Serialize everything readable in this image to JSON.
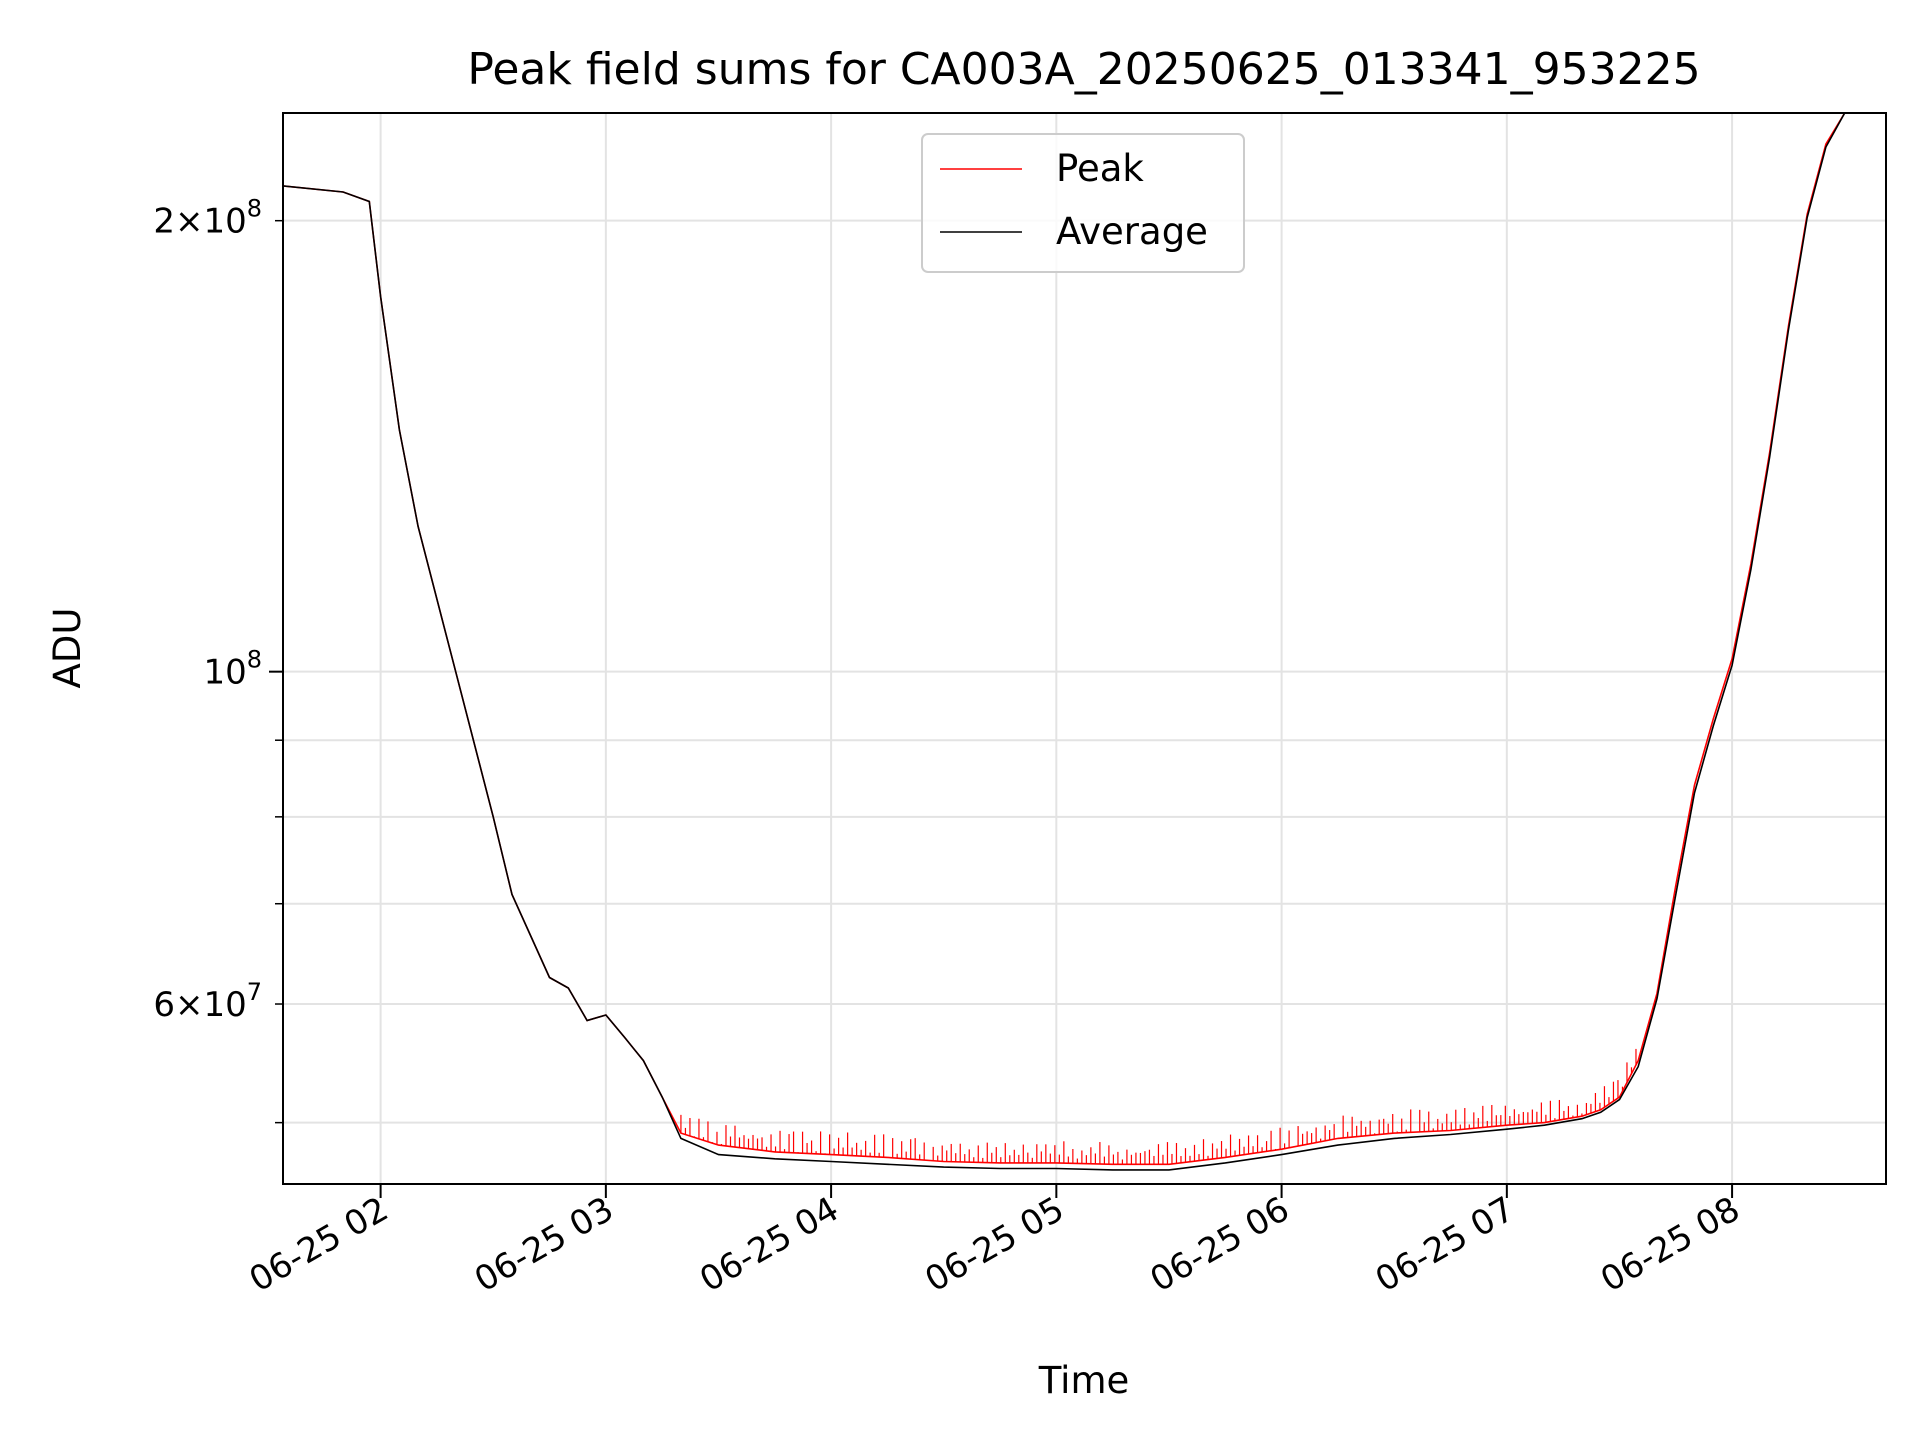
{
  "chart_data": {
    "type": "line",
    "title": "Peak field sums for CA003A_20250625_013341_953225",
    "xlabel": "Time",
    "ylabel": "ADU",
    "yscale": "log",
    "grid": true,
    "legend_position": "upper center",
    "xlim": [
      "06-25 01:34",
      "06-25 08:41"
    ],
    "ylim": [
      45500000,
      236000000
    ],
    "x_ticks": [
      {
        "value": "06-25 02:00",
        "label": "06-25 02"
      },
      {
        "value": "06-25 03:00",
        "label": "06-25 03"
      },
      {
        "value": "06-25 04:00",
        "label": "06-25 04"
      },
      {
        "value": "06-25 05:00",
        "label": "06-25 05"
      },
      {
        "value": "06-25 06:00",
        "label": "06-25 06"
      },
      {
        "value": "06-25 07:00",
        "label": "06-25 07"
      },
      {
        "value": "06-25 08:00",
        "label": "06-25 08"
      }
    ],
    "y_ticks_major": [
      {
        "value": 100000000,
        "base": "10",
        "exp": "8"
      }
    ],
    "y_ticks_minor_labeled": [
      {
        "value": 200000000,
        "mant": "2",
        "base": "10",
        "exp": "8"
      },
      {
        "value": 60000000,
        "mant": "6",
        "base": "10",
        "exp": "7"
      }
    ],
    "y_ticks_minor_unlabeled": [
      50000000,
      70000000,
      80000000,
      90000000
    ],
    "series": [
      {
        "name": "Peak",
        "color": "#ff0000",
        "note_spikes": true,
        "x": [
          "01:34",
          "01:50",
          "01:57",
          "02:00",
          "02:05",
          "02:10",
          "02:20",
          "02:30",
          "02:35",
          "02:45",
          "02:50",
          "02:55",
          "03:00",
          "03:05",
          "03:10",
          "03:15",
          "03:20",
          "03:30",
          "03:45",
          "04:00",
          "04:15",
          "04:30",
          "04:45",
          "05:00",
          "05:15",
          "05:30",
          "05:45",
          "06:00",
          "06:15",
          "06:30",
          "06:45",
          "07:00",
          "07:10",
          "07:20",
          "07:25",
          "07:30",
          "07:35",
          "07:40",
          "07:45",
          "07:50",
          "07:55",
          "08:00",
          "08:05",
          "08:10",
          "08:15",
          "08:20",
          "08:25",
          "08:30",
          "08:41"
        ],
        "y": [
          211000000,
          209000000,
          206000000,
          178000000,
          145000000,
          125000000,
          100000000,
          80000000,
          71000000,
          62500000,
          61500000,
          58500000,
          59000000,
          57000000,
          55000000,
          52000000,
          49200000,
          48300000,
          47800000,
          47600000,
          47400000,
          47100000,
          47000000,
          47000000,
          46900000,
          46900000,
          47400000,
          48000000,
          48800000,
          49200000,
          49400000,
          49800000,
          50000000,
          50500000,
          51000000,
          52000000,
          55000000,
          61000000,
          72000000,
          84000000,
          93000000,
          102000000,
          118000000,
          140000000,
          170000000,
          202000000,
          225000000,
          236000000,
          236000000
        ]
      },
      {
        "name": "Average",
        "color": "#000000",
        "x": [
          "01:34",
          "01:50",
          "01:57",
          "02:00",
          "02:05",
          "02:10",
          "02:20",
          "02:30",
          "02:35",
          "02:45",
          "02:50",
          "02:55",
          "03:00",
          "03:05",
          "03:10",
          "03:15",
          "03:20",
          "03:30",
          "03:45",
          "04:00",
          "04:15",
          "04:30",
          "04:45",
          "05:00",
          "05:15",
          "05:30",
          "05:45",
          "06:00",
          "06:15",
          "06:30",
          "06:45",
          "07:00",
          "07:10",
          "07:20",
          "07:25",
          "07:30",
          "07:35",
          "07:40",
          "07:45",
          "07:50",
          "07:55",
          "08:00",
          "08:05",
          "08:10",
          "08:15",
          "08:20",
          "08:25",
          "08:30",
          "08:41"
        ],
        "y": [
          211000000,
          209000000,
          206000000,
          178000000,
          145000000,
          125000000,
          100000000,
          80000000,
          71000000,
          62500000,
          61500000,
          58500000,
          59000000,
          57000000,
          55000000,
          52000000,
          48800000,
          47600000,
          47300000,
          47100000,
          46900000,
          46700000,
          46600000,
          46600000,
          46500000,
          46500000,
          47000000,
          47600000,
          48300000,
          48800000,
          49100000,
          49500000,
          49800000,
          50300000,
          50800000,
          51800000,
          54500000,
          60500000,
          71000000,
          83000000,
          92000000,
          101000000,
          117000000,
          139000000,
          169000000,
          201000000,
          224000000,
          236000000,
          236000000
        ]
      }
    ]
  }
}
